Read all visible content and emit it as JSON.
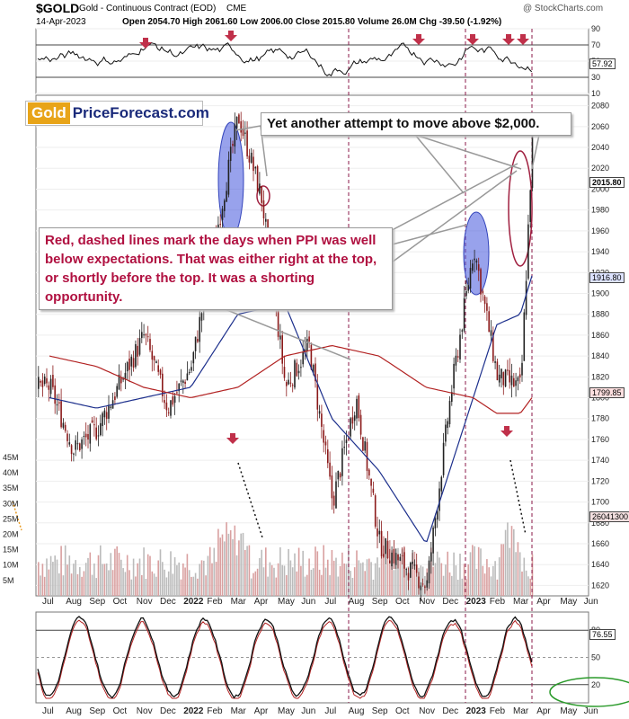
{
  "header": {
    "symbol": "$GOLD",
    "description": "Gold - Continuous Contract (EOD)",
    "exchange": "CME",
    "date": "14-Apr-2023",
    "stats": "Open 2054.70  High 2061.60  Low 2006.00  Close 2015.80  Volume 26.0M  Chg -39.50 (-1.92%)",
    "watermark": "@ StockCharts.com"
  },
  "logo": {
    "part1": "Gold",
    "part2": "PriceForecast.com"
  },
  "annotations": {
    "top": "Yet another attempt to move above $2,000.",
    "ppi": "Red, dashed lines mark the days when PPI was well below expectations. That was either right at the top, or shortly before the top. It was a shorting opportunity."
  },
  "colors": {
    "price_up": "#222222",
    "price_down": "#8b1a1a",
    "ma_short": "#1c2f8c",
    "ma_long": "#b22222",
    "ppi_line": "#8b1a4a",
    "arrow": "#c0304a",
    "highlight_blue": "#4455dd",
    "volume": "#d9a0a0"
  },
  "chart_data": [
    {
      "type": "line",
      "panel": "RSI",
      "ylim": [
        10,
        90
      ],
      "ticks": [
        "90",
        "70",
        "50",
        "30",
        "10"
      ],
      "last_value_label": "57.92",
      "overbought": 70,
      "oversold": 30
    },
    {
      "type": "candlestick",
      "panel": "price",
      "title": "Gold - Continuous Contract (EOD)",
      "ylim": [
        1610,
        2090
      ],
      "yticks": [
        "2080",
        "2060",
        "2040",
        "2020",
        "2000",
        "1980",
        "1960",
        "1940",
        "1920",
        "1900",
        "1880",
        "1860",
        "1840",
        "1820",
        "1800",
        "1780",
        "1760",
        "1740",
        "1720",
        "1700",
        "1680",
        "1660",
        "1640",
        "1620"
      ],
      "price_labels": {
        "close": "2015.80",
        "ma_short": "1916.80",
        "ma_long": "1799.85",
        "volume": "26041300"
      },
      "volume_ticks": [
        "45M",
        "40M",
        "35M",
        "30M",
        "25M",
        "20M",
        "15M",
        "10M",
        "5M"
      ],
      "x_labels": [
        "Jul",
        "Aug",
        "Sep",
        "Oct",
        "Nov",
        "Dec",
        "2022",
        "Feb",
        "Mar",
        "Apr",
        "May",
        "Jun",
        "Jul",
        "Aug",
        "Sep",
        "Oct",
        "Nov",
        "Dec",
        "2023",
        "Feb",
        "Mar",
        "Apr",
        "May",
        "Jun"
      ],
      "key_prices": [
        {
          "date": "Jul 2021",
          "value": 1810
        },
        {
          "date": "Aug 2021",
          "value": 1750
        },
        {
          "date": "Sep 2021",
          "value": 1770
        },
        {
          "date": "Nov 2021",
          "value": 1860
        },
        {
          "date": "Dec 2021",
          "value": 1790
        },
        {
          "date": "Jan 2022",
          "value": 1830
        },
        {
          "date": "Mar 2022",
          "value": 2070
        },
        {
          "date": "Apr 2022",
          "value": 1990
        },
        {
          "date": "May 2022",
          "value": 1810
        },
        {
          "date": "Jun 2022",
          "value": 1850
        },
        {
          "date": "Jul 2022",
          "value": 1700
        },
        {
          "date": "Aug 2022",
          "value": 1800
        },
        {
          "date": "Sep 2022",
          "value": 1660
        },
        {
          "date": "Nov 2022",
          "value": 1620
        },
        {
          "date": "Dec 2022",
          "value": 1800
        },
        {
          "date": "Jan 2023",
          "value": 1945
        },
        {
          "date": "Feb 2023",
          "value": 1820
        },
        {
          "date": "Mar 2023",
          "value": 1810
        },
        {
          "date": "Apr 2023",
          "value": 2055
        }
      ],
      "ma_short": [
        {
          "date": "Jul 2021",
          "value": 1800
        },
        {
          "date": "Sep 2021",
          "value": 1790
        },
        {
          "date": "Nov 2021",
          "value": 1800
        },
        {
          "date": "Jan 2022",
          "value": 1810
        },
        {
          "date": "Mar 2022",
          "value": 1880
        },
        {
          "date": "May 2022",
          "value": 1890
        },
        {
          "date": "Jul 2022",
          "value": 1780
        },
        {
          "date": "Sep 2022",
          "value": 1730
        },
        {
          "date": "Nov 2022",
          "value": 1660
        },
        {
          "date": "Jan 2023",
          "value": 1800
        },
        {
          "date": "Feb 2023",
          "value": 1870
        },
        {
          "date": "Mar 2023",
          "value": 1880
        },
        {
          "date": "Apr 2023",
          "value": 1917
        }
      ],
      "ma_long": [
        {
          "date": "Jul 2021",
          "value": 1840
        },
        {
          "date": "Sep 2021",
          "value": 1830
        },
        {
          "date": "Nov 2021",
          "value": 1810
        },
        {
          "date": "Jan 2022",
          "value": 1800
        },
        {
          "date": "Mar 2022",
          "value": 1810
        },
        {
          "date": "May 2022",
          "value": 1840
        },
        {
          "date": "Jul 2022",
          "value": 1850
        },
        {
          "date": "Sep 2022",
          "value": 1840
        },
        {
          "date": "Nov 2022",
          "value": 1810
        },
        {
          "date": "Jan 2023",
          "value": 1800
        },
        {
          "date": "Feb 2023",
          "value": 1785
        },
        {
          "date": "Mar 2023",
          "value": 1785
        },
        {
          "date": "Apr 2023",
          "value": 1800
        }
      ],
      "ppi_dates": [
        "Aug 2022",
        "Jan 2023",
        "Apr 2023"
      ]
    },
    {
      "type": "line",
      "panel": "stochastic",
      "ylim": [
        0,
        100
      ],
      "ticks": [
        "80",
        "50",
        "20"
      ],
      "last_value_label": "76.55"
    }
  ]
}
